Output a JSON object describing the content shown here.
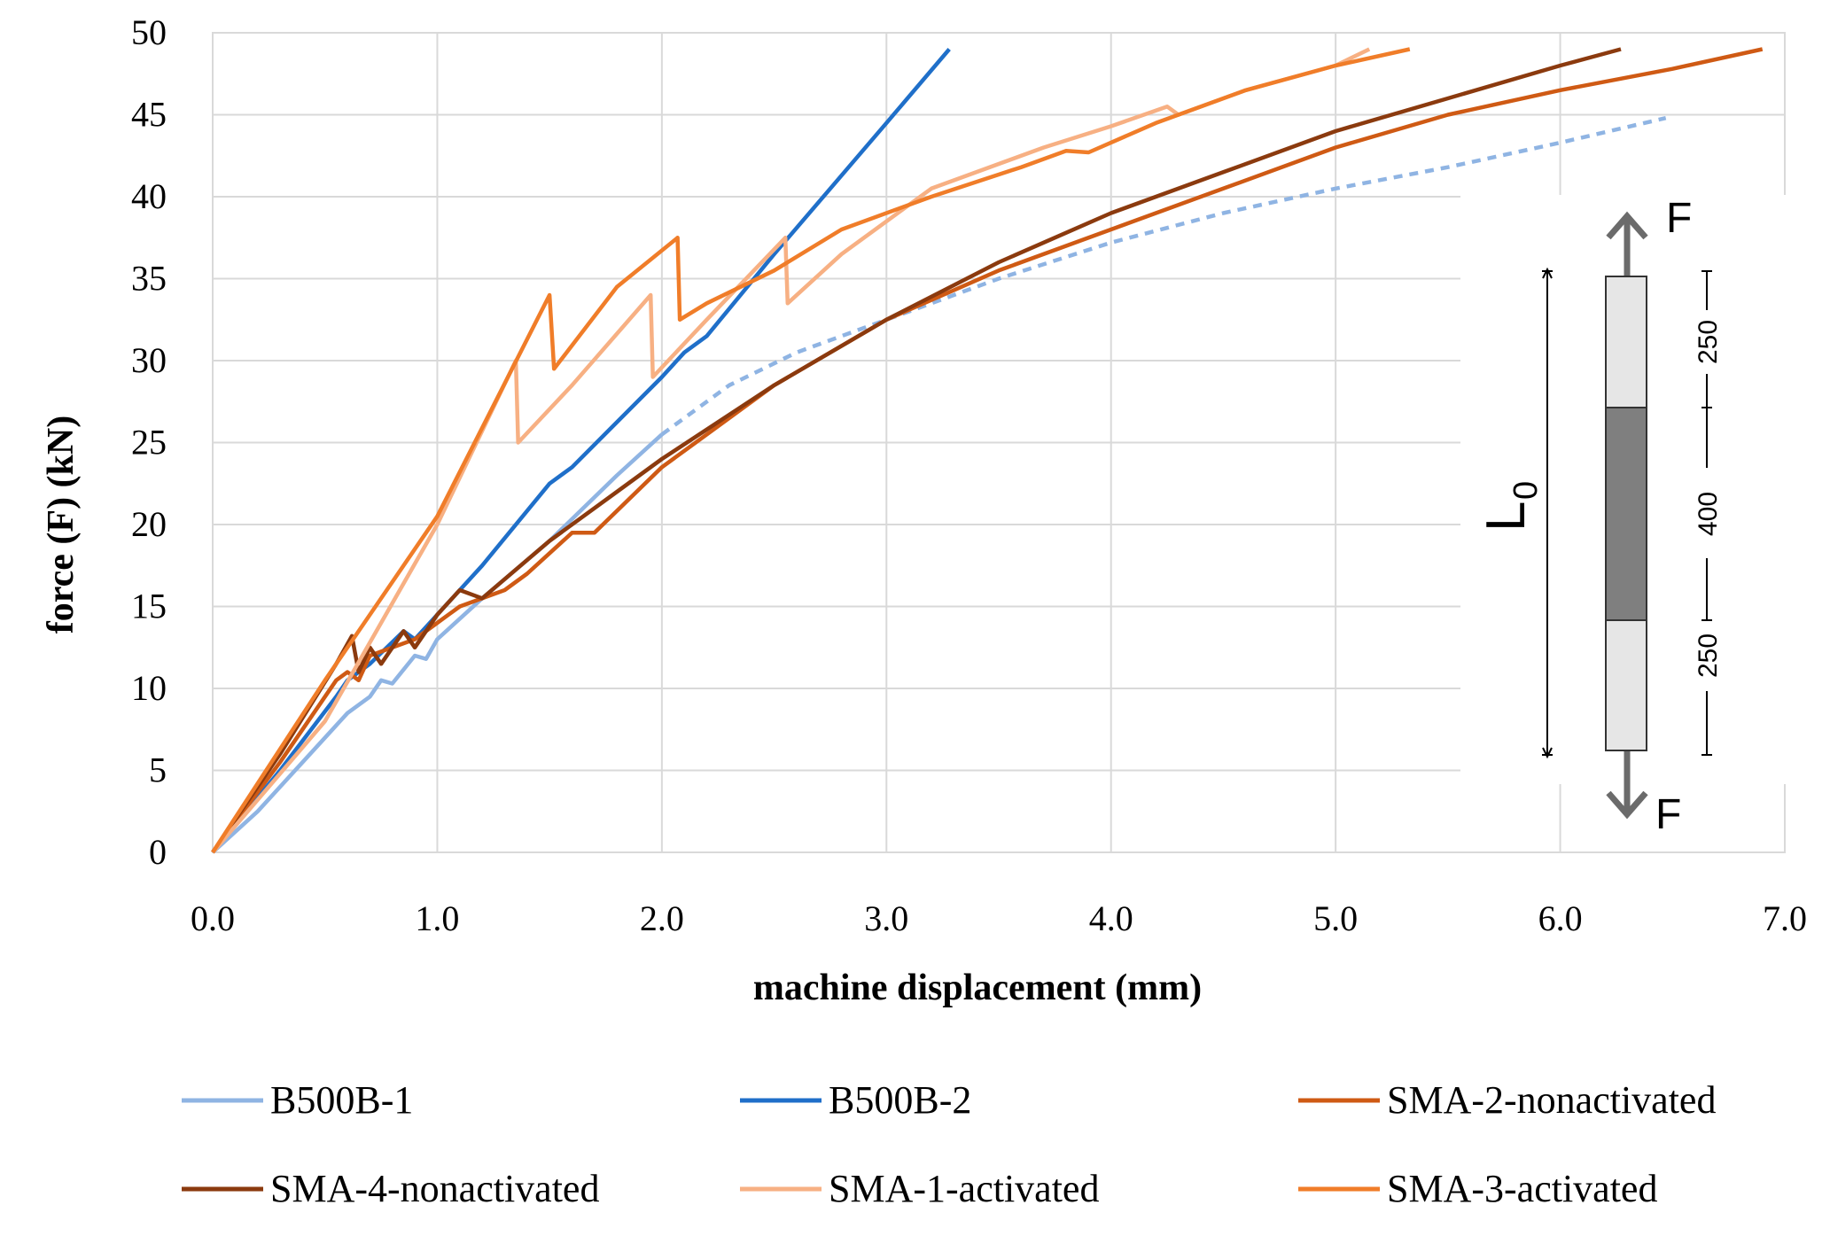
{
  "chart_data": {
    "type": "line",
    "xlabel": "machine displacement (mm)",
    "ylabel": "force (F) (kN)",
    "xlim": [
      0,
      7
    ],
    "ylim": [
      0,
      50
    ],
    "x_ticks": [
      "0.0",
      "1.0",
      "2.0",
      "3.0",
      "4.0",
      "5.0",
      "6.0",
      "7.0"
    ],
    "y_ticks": [
      "0",
      "5",
      "10",
      "15",
      "20",
      "25",
      "30",
      "35",
      "40",
      "45",
      "50"
    ],
    "x_tick_values": [
      0,
      1,
      2,
      3,
      4,
      5,
      6,
      7
    ],
    "y_tick_values": [
      0,
      5,
      10,
      15,
      20,
      25,
      30,
      35,
      40,
      45,
      50
    ],
    "grid": true,
    "legend_position": "bottom",
    "series": [
      {
        "name": "B500B-1",
        "color": "#8fb4e3",
        "x": [
          0,
          0.2,
          0.4,
          0.6,
          0.7,
          0.75,
          0.8,
          0.9,
          0.95,
          1.0,
          1.2,
          1.5,
          1.8,
          2.0
        ],
        "y": [
          0,
          2.5,
          5.5,
          8.5,
          9.5,
          10.5,
          10.3,
          12,
          11.8,
          13,
          15.5,
          19,
          23,
          25.5
        ]
      },
      {
        "name": "B500B-1 (dashed)",
        "color": "#8fb4e3",
        "dashed": true,
        "x": [
          2.0,
          2.3,
          2.6,
          3.0,
          3.5,
          4.0,
          4.5,
          5.0,
          5.5,
          6.0,
          6.47
        ],
        "y": [
          25.5,
          28.5,
          30.5,
          32.5,
          35.0,
          37.2,
          39.0,
          40.5,
          41.8,
          43.3,
          44.8
        ]
      },
      {
        "name": "B500B-2",
        "color": "#1f6fc9",
        "x": [
          0,
          0.3,
          0.55,
          0.6,
          0.7,
          0.85,
          0.9,
          1.2,
          1.5,
          1.6,
          2.0,
          2.1,
          2.2,
          2.5,
          3.0,
          3.28
        ],
        "y": [
          0,
          5,
          9.5,
          10.5,
          11.5,
          13.5,
          13,
          17.5,
          22.5,
          23.5,
          29,
          30.5,
          31.5,
          36.5,
          44.5,
          49
        ]
      },
      {
        "name": "SMA-2-nonactivated",
        "color": "#cf5a14",
        "x": [
          0,
          0.3,
          0.55,
          0.6,
          0.65,
          0.7,
          0.8,
          0.9,
          1.0,
          1.1,
          1.3,
          1.4,
          1.6,
          1.7,
          2.0,
          2.5,
          3.0,
          3.5,
          4.0,
          4.5,
          5.0,
          5.5,
          6.0,
          6.5,
          6.9
        ],
        "y": [
          0,
          5.5,
          10.5,
          11,
          10.5,
          12,
          12.5,
          13,
          14,
          15,
          16,
          17,
          19.5,
          19.5,
          23.5,
          28.5,
          32.5,
          35.5,
          38,
          40.5,
          43,
          45,
          46.5,
          47.8,
          49
        ]
      },
      {
        "name": "SMA-4-nonactivated",
        "color": "#8b3a0e",
        "x": [
          0,
          0.3,
          0.55,
          0.62,
          0.65,
          0.7,
          0.75,
          0.85,
          0.9,
          1.0,
          1.1,
          1.2,
          1.5,
          1.8,
          2.0,
          2.5,
          3.0,
          3.5,
          4.0,
          4.5,
          4.8,
          5.0,
          5.5,
          6.0,
          6.27
        ],
        "y": [
          0,
          6,
          11.5,
          13.2,
          11,
          12.5,
          11.5,
          13.5,
          12.5,
          14.5,
          16,
          15.5,
          19,
          22,
          24,
          28.5,
          32.5,
          36,
          39,
          41.5,
          43,
          44,
          46,
          48,
          49
        ]
      },
      {
        "name": "SMA-1-activated",
        "color": "#f7b083",
        "x": [
          0,
          0.5,
          1.0,
          1.35,
          1.36,
          1.6,
          1.95,
          1.96,
          2.2,
          2.55,
          2.56,
          2.8,
          3.2,
          3.7,
          4.0,
          4.25,
          4.3,
          4.6,
          5.0,
          5.15
        ],
        "y": [
          0,
          8,
          20,
          30,
          25,
          28.5,
          34,
          29,
          32.5,
          37.5,
          33.5,
          36.5,
          40.5,
          43,
          44.3,
          45.5,
          45,
          46.5,
          48,
          49
        ]
      },
      {
        "name": "SMA-3-activated",
        "color": "#f07d29",
        "x": [
          0,
          0.5,
          1.0,
          1.5,
          1.52,
          1.8,
          2.07,
          2.08,
          2.2,
          2.5,
          2.8,
          3.2,
          3.6,
          3.8,
          3.9,
          4.2,
          4.6,
          5.0,
          5.33
        ],
        "y": [
          0,
          10.5,
          20.5,
          34,
          29.5,
          34.5,
          37.5,
          32.5,
          33.5,
          35.5,
          38,
          40,
          41.8,
          42.8,
          42.7,
          44.5,
          46.5,
          48,
          49
        ]
      }
    ],
    "legend": [
      "B500B-1",
      "B500B-2",
      "SMA-2-nonactivated",
      "SMA-4-nonactivated",
      "SMA-1-activated",
      "SMA-3-activated"
    ],
    "inset": {
      "force_label_top": "F",
      "force_label_bottom": "F",
      "length_label": "L",
      "length_subscript": "0",
      "dims": [
        "250",
        "400",
        "250"
      ]
    }
  }
}
